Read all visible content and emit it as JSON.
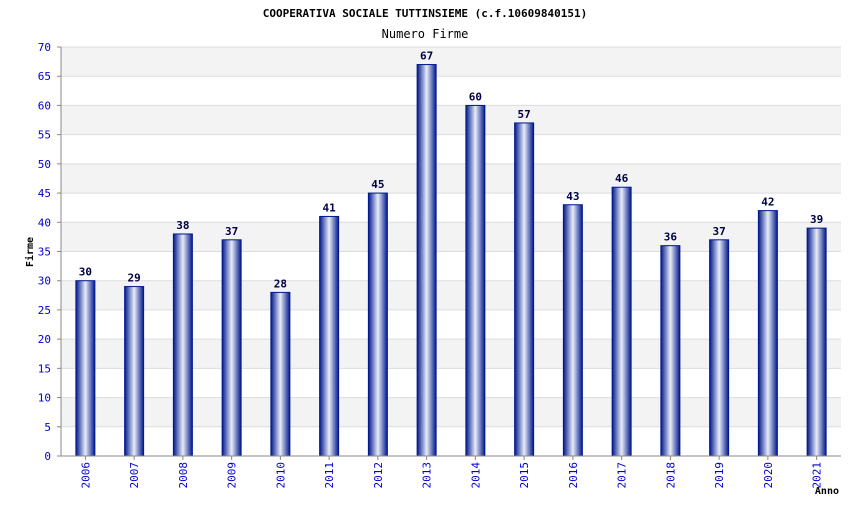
{
  "chart_data": {
    "type": "bar",
    "title": "COOPERATIVA SOCIALE TUTTINSIEME (c.f.10609840151)",
    "subtitle": "Numero Firme",
    "xlabel": "Anno",
    "ylabel": "Firme",
    "categories": [
      "2006",
      "2007",
      "2008",
      "2009",
      "2010",
      "2011",
      "2012",
      "2013",
      "2014",
      "2015",
      "2016",
      "2017",
      "2018",
      "2019",
      "2020",
      "2021"
    ],
    "values": [
      30,
      29,
      38,
      37,
      28,
      41,
      45,
      67,
      60,
      57,
      43,
      46,
      36,
      37,
      42,
      39
    ],
    "ylim": [
      0,
      70
    ],
    "yticks": [
      0,
      5,
      10,
      15,
      20,
      25,
      30,
      35,
      40,
      45,
      50,
      55,
      60,
      65,
      70
    ],
    "grid": true,
    "colors": {
      "bar_dark": "#00188c",
      "bar_light": "#e8ecf8",
      "band": "#f3f3f3",
      "grid": "#dddddd",
      "tick_text": "#0000cc"
    }
  }
}
